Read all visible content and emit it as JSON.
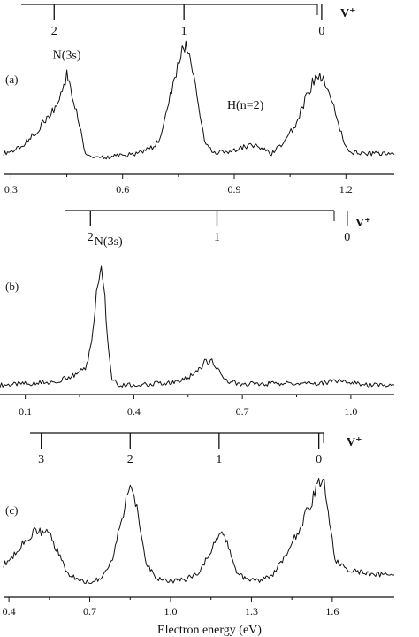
{
  "chart_data": [
    {
      "type": "line",
      "panel_label": "(a)",
      "xlim": [
        0.28,
        1.33
      ],
      "xticks": [
        0.3,
        0.6,
        0.9,
        1.2
      ],
      "xtick_labels": [
        "0.3",
        "0.6",
        "0.9",
        "1.2"
      ],
      "level_scale": {
        "label": "V⁺",
        "levels": [
          {
            "label": "2",
            "x": 0.416
          },
          {
            "label": "1",
            "x": 0.765
          },
          {
            "label": "0",
            "x": 1.135
          }
        ]
      },
      "annotations": [
        {
          "text": "N(3s)",
          "x": 0.45,
          "y": 0.86
        },
        {
          "text": "H(n=2)",
          "x": 0.93,
          "y": 0.43
        }
      ],
      "series": [
        {
          "x": [
            0.28,
            0.32,
            0.36,
            0.4,
            0.43,
            0.45,
            0.46,
            0.48,
            0.5,
            0.52,
            0.56,
            0.6,
            0.64,
            0.68,
            0.7,
            0.72,
            0.74,
            0.76,
            0.77,
            0.78,
            0.8,
            0.82,
            0.84,
            0.88,
            0.9,
            0.94,
            0.97,
            1.0,
            1.03,
            1.06,
            1.09,
            1.11,
            1.13,
            1.14,
            1.16,
            1.18,
            1.2,
            1.22,
            1.25,
            1.28,
            1.33
          ],
          "y": [
            0.05,
            0.09,
            0.21,
            0.36,
            0.49,
            0.73,
            0.61,
            0.35,
            0.06,
            0.02,
            0.02,
            0.03,
            0.05,
            0.1,
            0.17,
            0.46,
            0.7,
            0.92,
            1.0,
            0.93,
            0.55,
            0.17,
            0.06,
            0.06,
            0.08,
            0.12,
            0.1,
            0.05,
            0.13,
            0.27,
            0.5,
            0.65,
            0.72,
            0.67,
            0.54,
            0.3,
            0.1,
            0.06,
            0.05,
            0.05,
            0.04
          ]
        }
      ]
    },
    {
      "type": "line",
      "panel_label": "(b)",
      "xlim": [
        0.03,
        1.12
      ],
      "xticks": [
        0.1,
        0.4,
        0.7,
        1.0
      ],
      "xtick_labels": [
        "0.1",
        "0.4",
        "0.7",
        "1.0"
      ],
      "level_scale": {
        "label": "V⁺",
        "levels": [
          {
            "label": "2",
            "x": 0.28
          },
          {
            "label": "1",
            "x": 0.63
          },
          {
            "label": "0",
            "x": 0.99
          }
        ]
      },
      "annotations": [
        {
          "text": "N(3s)",
          "x": 0.33,
          "y": 1.15
        }
      ],
      "series": [
        {
          "x": [
            0.03,
            0.1,
            0.18,
            0.22,
            0.25,
            0.27,
            0.28,
            0.29,
            0.3,
            0.31,
            0.32,
            0.33,
            0.34,
            0.36,
            0.4,
            0.5,
            0.55,
            0.58,
            0.6,
            0.62,
            0.64,
            0.66,
            0.7,
            0.8,
            0.9,
            0.95,
            1.0,
            1.05,
            1.12
          ],
          "y": [
            0.02,
            0.03,
            0.05,
            0.08,
            0.12,
            0.18,
            0.32,
            0.55,
            0.85,
            1.0,
            0.72,
            0.3,
            0.06,
            0.02,
            0.02,
            0.04,
            0.08,
            0.14,
            0.22,
            0.2,
            0.12,
            0.05,
            0.03,
            0.03,
            0.03,
            0.05,
            0.04,
            0.02,
            0.02
          ]
        }
      ]
    },
    {
      "type": "line",
      "panel_label": "(c)",
      "xlim": [
        0.38,
        1.83
      ],
      "xticks": [
        0.4,
        0.7,
        1.0,
        1.3,
        1.6
      ],
      "xtick_labels": [
        "0.4",
        "0.7",
        "1.0",
        "1.3",
        "1.6"
      ],
      "xlabel": "Electron energy (eV)",
      "level_scale": {
        "label": "V⁺",
        "levels": [
          {
            "label": "3",
            "x": 0.52
          },
          {
            "label": "2",
            "x": 0.85
          },
          {
            "label": "1",
            "x": 1.18
          },
          {
            "label": "0",
            "x": 1.55
          }
        ]
      },
      "annotations": [],
      "series": [
        {
          "x": [
            0.38,
            0.42,
            0.46,
            0.5,
            0.55,
            0.58,
            0.62,
            0.66,
            0.7,
            0.74,
            0.78,
            0.81,
            0.84,
            0.86,
            0.88,
            0.91,
            0.95,
            1.0,
            1.05,
            1.1,
            1.14,
            1.17,
            1.19,
            1.21,
            1.24,
            1.28,
            1.33,
            1.38,
            1.43,
            1.47,
            1.5,
            1.53,
            1.55,
            1.57,
            1.59,
            1.61,
            1.65,
            1.7,
            1.75,
            1.83
          ],
          "y": [
            0.18,
            0.26,
            0.4,
            0.47,
            0.44,
            0.3,
            0.1,
            0.05,
            0.03,
            0.06,
            0.2,
            0.48,
            0.78,
            0.84,
            0.6,
            0.2,
            0.06,
            0.04,
            0.05,
            0.1,
            0.25,
            0.42,
            0.46,
            0.38,
            0.14,
            0.05,
            0.04,
            0.1,
            0.26,
            0.45,
            0.6,
            0.76,
            0.9,
            0.86,
            0.56,
            0.22,
            0.14,
            0.12,
            0.1,
            0.09
          ]
        }
      ]
    }
  ]
}
